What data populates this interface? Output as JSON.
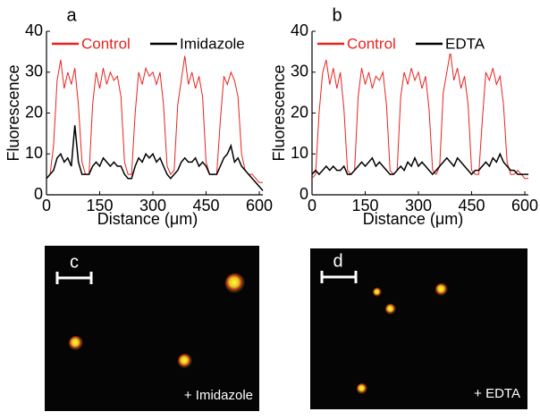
{
  "chart_data": [
    {
      "type": "line",
      "panel": "a",
      "xlabel": "Distance (μm)",
      "ylabel": "Fluorescence",
      "xlim": [
        0,
        610
      ],
      "ylim": [
        0,
        40
      ],
      "xticks": [
        0,
        150,
        300,
        450,
        600
      ],
      "yticks": [
        0,
        10,
        20,
        30,
        40
      ],
      "x": [
        0,
        10,
        20,
        30,
        40,
        50,
        60,
        70,
        80,
        90,
        100,
        110,
        120,
        130,
        140,
        150,
        160,
        170,
        180,
        190,
        200,
        210,
        220,
        230,
        240,
        250,
        260,
        270,
        280,
        290,
        300,
        310,
        320,
        330,
        340,
        350,
        360,
        370,
        380,
        390,
        400,
        410,
        420,
        430,
        440,
        450,
        460,
        470,
        480,
        490,
        500,
        510,
        520,
        530,
        540,
        550,
        560,
        570,
        580,
        590,
        600,
        610
      ],
      "series": [
        {
          "name": "Control",
          "color": "#e8231f",
          "values": [
            4,
            5,
            12,
            28,
            33,
            26,
            30,
            27,
            31,
            22,
            8,
            5,
            5,
            22,
            30,
            26,
            31,
            27,
            30,
            28,
            29,
            24,
            8,
            5,
            5,
            20,
            30,
            27,
            31,
            29,
            30,
            27,
            30,
            22,
            7,
            5,
            6,
            22,
            28,
            34,
            27,
            30,
            26,
            29,
            24,
            8,
            5,
            5,
            5,
            18,
            29,
            27,
            30,
            28,
            24,
            10,
            6,
            5,
            5,
            4,
            3,
            3
          ]
        },
        {
          "name": "Imidazole",
          "color": "#000000",
          "values": [
            4,
            5,
            6,
            9,
            10,
            8,
            9,
            7,
            17,
            8,
            5,
            5,
            5,
            7,
            8,
            7,
            9,
            8,
            7,
            8,
            7,
            7,
            5,
            4,
            4,
            7,
            9,
            8,
            10,
            9,
            10,
            8,
            9,
            7,
            5,
            4,
            5,
            6,
            8,
            9,
            8,
            8,
            9,
            7,
            8,
            7,
            5,
            5,
            5,
            7,
            9,
            10,
            12,
            8,
            9,
            7,
            6,
            5,
            4,
            3,
            2,
            1
          ]
        }
      ]
    },
    {
      "type": "line",
      "panel": "b",
      "xlabel": "Distance (μm)",
      "ylabel": "Fluorescence",
      "xlim": [
        0,
        610
      ],
      "ylim": [
        0,
        40
      ],
      "xticks": [
        0,
        150,
        300,
        450,
        600
      ],
      "yticks": [
        0,
        10,
        20,
        30,
        40
      ],
      "x": [
        0,
        10,
        20,
        30,
        40,
        50,
        60,
        70,
        80,
        90,
        100,
        110,
        120,
        130,
        140,
        150,
        160,
        170,
        180,
        190,
        200,
        210,
        220,
        230,
        240,
        250,
        260,
        270,
        280,
        290,
        300,
        310,
        320,
        330,
        340,
        350,
        360,
        370,
        380,
        390,
        400,
        410,
        420,
        430,
        440,
        450,
        460,
        470,
        480,
        490,
        500,
        510,
        520,
        530,
        540,
        550,
        560,
        570,
        580,
        590,
        600,
        610
      ],
      "series": [
        {
          "name": "Control",
          "color": "#e8231f",
          "values": [
            4,
            5,
            20,
            30,
            33,
            27,
            31,
            26,
            30,
            21,
            6,
            5,
            6,
            24,
            31,
            27,
            30,
            26,
            29,
            28,
            30,
            22,
            6,
            5,
            6,
            24,
            30,
            27,
            31,
            28,
            30,
            26,
            29,
            21,
            6,
            5,
            7,
            25,
            30,
            35,
            28,
            31,
            26,
            29,
            22,
            6,
            5,
            5,
            18,
            30,
            28,
            31,
            27,
            29,
            22,
            8,
            5,
            5,
            6,
            5,
            4,
            4
          ]
        },
        {
          "name": "EDTA",
          "color": "#000000",
          "values": [
            5,
            6,
            5,
            6,
            7,
            6,
            7,
            6,
            6,
            7,
            5,
            5,
            6,
            7,
            8,
            7,
            8,
            9,
            7,
            8,
            7,
            6,
            5,
            5,
            6,
            7,
            6,
            8,
            7,
            9,
            7,
            8,
            7,
            6,
            5,
            6,
            7,
            8,
            9,
            8,
            7,
            9,
            8,
            7,
            6,
            5,
            6,
            6,
            7,
            8,
            7,
            9,
            8,
            10,
            8,
            7,
            6,
            6,
            5,
            5,
            5,
            5
          ]
        }
      ]
    }
  ],
  "images": [
    {
      "label": "c",
      "caption": "+ Imidazole"
    },
    {
      "label": "d",
      "caption": "+ EDTA"
    }
  ]
}
